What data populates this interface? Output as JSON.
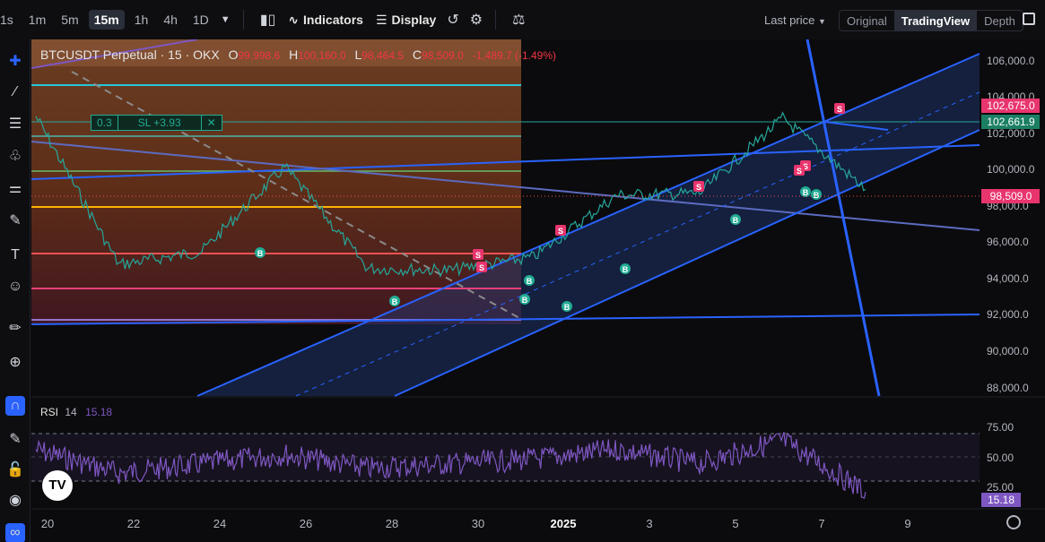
{
  "toolbar": {
    "timeframes": [
      "1s",
      "1m",
      "5m",
      "15m",
      "1h",
      "4h",
      "1D"
    ],
    "active_timeframe": "15m",
    "indicators_label": "Indicators",
    "display_label": "Display",
    "last_price_label": "Last price",
    "views": [
      "Original",
      "TradingView",
      "Depth"
    ],
    "active_view": "TradingView"
  },
  "legend": {
    "symbol": "BTCUSDT Perpetual · 15 · OKX",
    "o_label": "O",
    "o": "99,998.6",
    "h_label": "H",
    "h": "100,160.0",
    "l_label": "L",
    "l": "98,464.5",
    "c_label": "C",
    "c": "98,509.0",
    "change": "-1,489.7 (-1.49%)"
  },
  "sl_box": {
    "qty": "0.3",
    "label": "SL +3.93",
    "close": "✕"
  },
  "price_axis": {
    "ticks": [
      "106,000.0",
      "104,000.0",
      "102,000.0",
      "100,000.0",
      "98,000.0",
      "96,000.0",
      "94,000.0",
      "92,000.0",
      "90,000.0",
      "88,000.0"
    ],
    "tag_red": "102,675.0",
    "tag_green": "102,661.9",
    "tag_last": "98,509.0"
  },
  "rsi": {
    "name": "RSI",
    "period": "14",
    "value": "15.18",
    "ticks": [
      "75.00",
      "50.00",
      "25.00"
    ]
  },
  "time_axis": [
    "20",
    "22",
    "24",
    "26",
    "28",
    "30",
    "2025",
    "3",
    "5",
    "7",
    "9"
  ],
  "markers": {
    "buy": "B",
    "sell": "S"
  },
  "colors": {
    "bg": "#0b0b0d",
    "up": "#26a69a",
    "down": "#ef5350",
    "channel": "#2962ff",
    "rsi": "#7e57c2",
    "sell_marker": "#e8356e",
    "buy_marker": "#22ab94"
  },
  "chart_data": {
    "type": "line",
    "x": [
      "20",
      "22",
      "24",
      "26",
      "28",
      "30",
      "2025",
      "3",
      "5",
      "7",
      "8"
    ],
    "series": [
      {
        "values": [
          102400,
          94500,
          95200,
          99700,
          94300,
          94200,
          94900,
          98200,
          98300,
          102300,
          98509
        ]
      }
    ],
    "ylim": [
      87500,
      106500
    ],
    "rsi": {
      "values": [
        60,
        35,
        45,
        55,
        40,
        45,
        50,
        60,
        45,
        70,
        15.18
      ],
      "ylim": [
        0,
        100
      ],
      "levels": [
        75,
        50,
        25
      ]
    }
  }
}
